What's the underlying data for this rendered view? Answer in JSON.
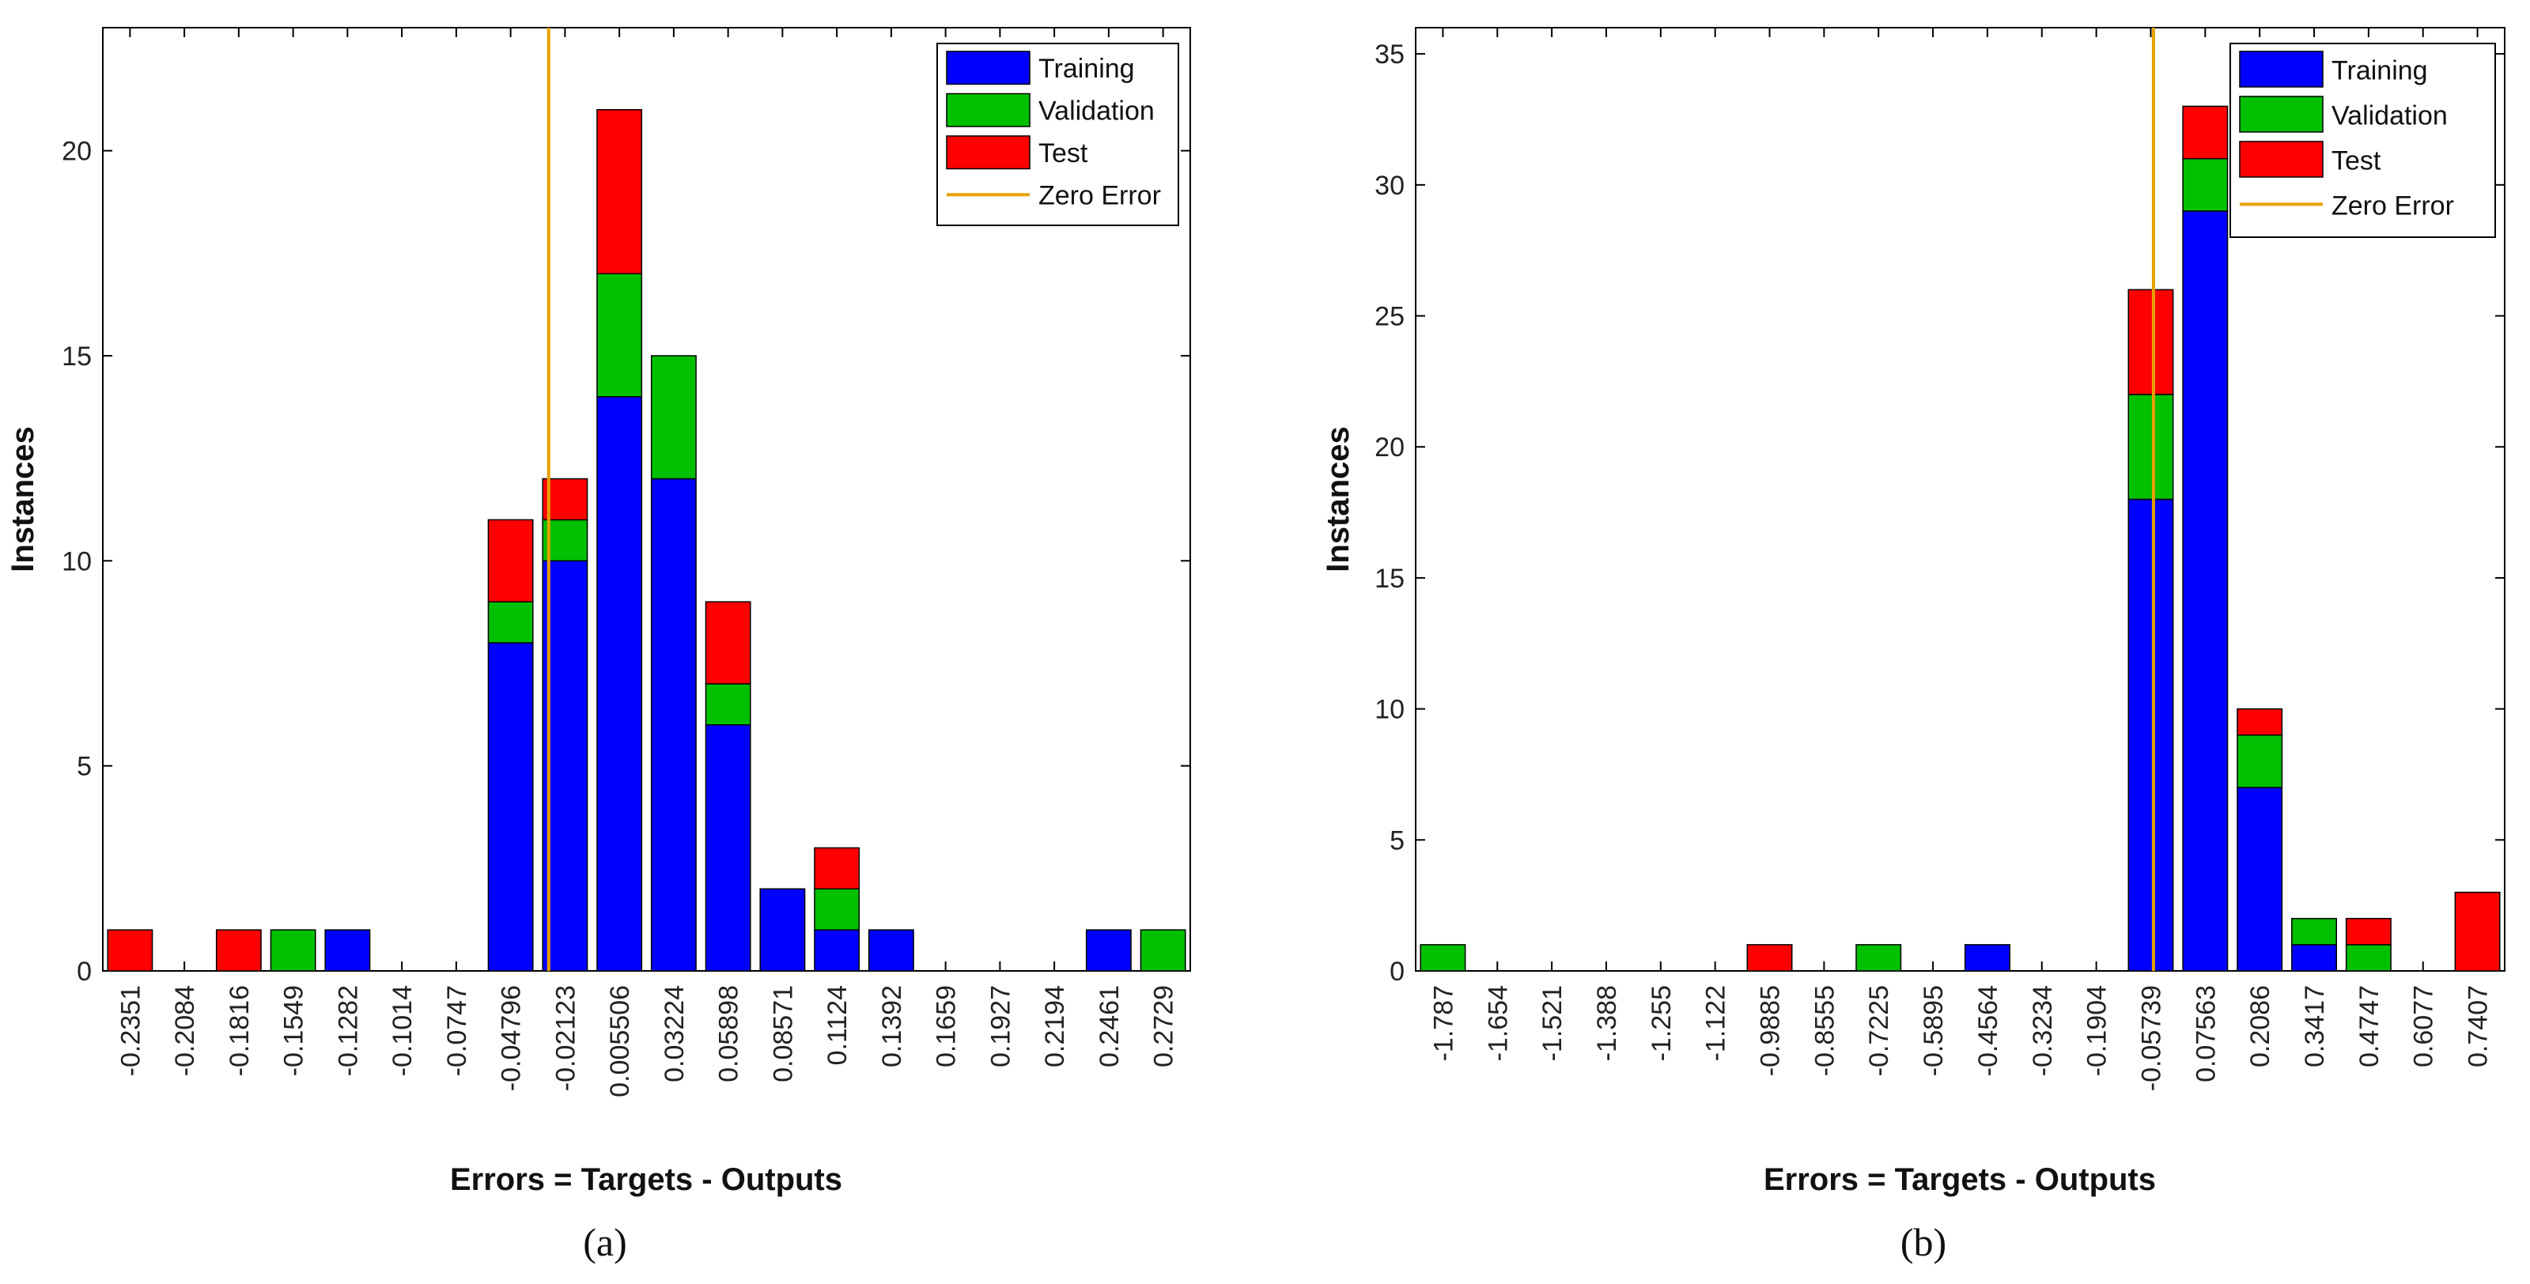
{
  "colors": {
    "training": "#0000ff",
    "validation": "#00c000",
    "test": "#ff0000",
    "zero_error": "#e8a000",
    "bar_edge": "#000000"
  },
  "chart_data": [
    {
      "type": "bar",
      "stacked": true,
      "caption": "(a)",
      "xlabel": "Errors = Targets - Outputs",
      "ylabel": "Instances",
      "ylim": [
        0,
        23
      ],
      "yticks": [
        0,
        5,
        10,
        15,
        20
      ],
      "categories": [
        "-0.2351",
        "-0.2084",
        "-0.1816",
        "-0.1549",
        "-0.1282",
        "-0.1014",
        "-0.0747",
        "-0.04796",
        "-0.02123",
        "0.005506",
        "0.03224",
        "0.05898",
        "0.08571",
        "0.1124",
        "0.1392",
        "0.1659",
        "0.1927",
        "0.2194",
        "0.2461",
        "0.2729"
      ],
      "series": [
        {
          "name": "Training",
          "values": [
            0,
            0,
            0,
            0,
            1,
            0,
            0,
            8,
            10,
            14,
            12,
            6,
            2,
            1,
            1,
            0,
            0,
            0,
            1,
            0
          ]
        },
        {
          "name": "Validation",
          "values": [
            0,
            0,
            0,
            1,
            0,
            0,
            0,
            1,
            1,
            3,
            3,
            1,
            0,
            1,
            0,
            0,
            0,
            0,
            0,
            1
          ]
        },
        {
          "name": "Test",
          "values": [
            1,
            0,
            1,
            0,
            0,
            0,
            0,
            2,
            1,
            4,
            0,
            2,
            0,
            1,
            0,
            0,
            0,
            0,
            0,
            0
          ]
        }
      ],
      "zero_error_label": "Zero Error",
      "zero_error_position": 8.2,
      "legend": "top-right",
      "grid": false
    },
    {
      "type": "bar",
      "stacked": true,
      "caption": "(b)",
      "xlabel": "Errors = Targets - Outputs",
      "ylabel": "Instances",
      "ylim": [
        0,
        36
      ],
      "yticks": [
        0,
        5,
        10,
        15,
        20,
        25,
        30,
        35
      ],
      "categories": [
        "-1.787",
        "-1.654",
        "-1.521",
        "-1.388",
        "-1.255",
        "-1.122",
        "-0.9885",
        "-0.8555",
        "-0.7225",
        "-0.5895",
        "-0.4564",
        "-0.3234",
        "-0.1904",
        "-0.05739",
        "0.07563",
        "0.2086",
        "0.3417",
        "0.4747",
        "0.6077",
        "0.7407"
      ],
      "series": [
        {
          "name": "Training",
          "values": [
            0,
            0,
            0,
            0,
            0,
            0,
            0,
            0,
            0,
            0,
            1,
            0,
            0,
            18,
            29,
            7,
            1,
            0,
            0,
            0
          ]
        },
        {
          "name": "Validation",
          "values": [
            1,
            0,
            0,
            0,
            0,
            0,
            0,
            0,
            1,
            0,
            0,
            0,
            0,
            4,
            2,
            2,
            1,
            1,
            0,
            0
          ]
        },
        {
          "name": "Test",
          "values": [
            0,
            0,
            0,
            0,
            0,
            0,
            1,
            0,
            0,
            0,
            0,
            0,
            0,
            4,
            2,
            1,
            0,
            1,
            0,
            3
          ]
        }
      ],
      "zero_error_label": "Zero Error",
      "zero_error_position": 13.55,
      "legend": "top-right",
      "grid": false
    }
  ]
}
